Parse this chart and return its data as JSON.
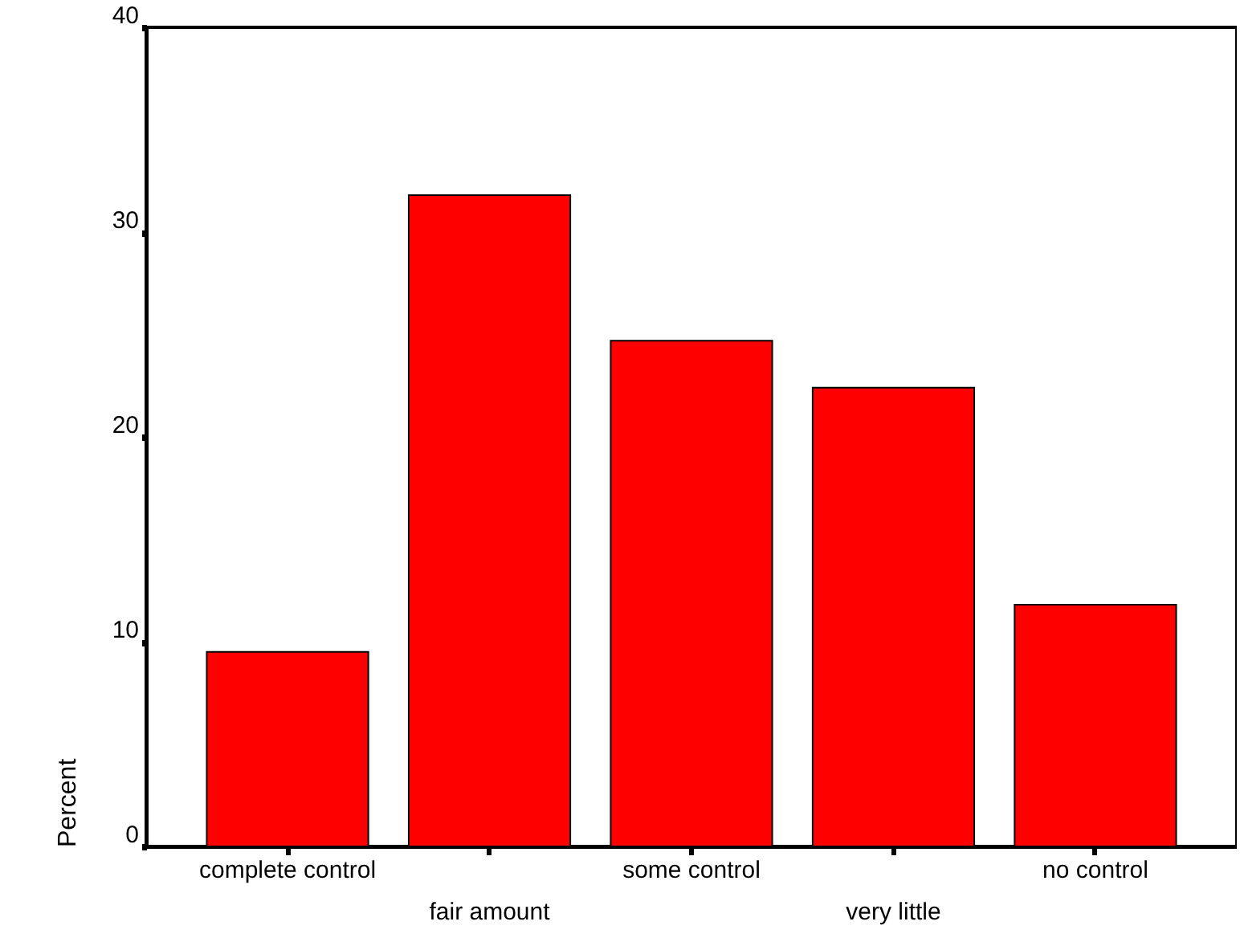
{
  "chart_data": {
    "type": "bar",
    "ylabel": "Percent",
    "categories": [
      "complete control",
      "fair amount",
      "some control",
      "very little",
      "no control"
    ],
    "values": [
      9.5,
      31.8,
      24.7,
      22.4,
      11.8
    ],
    "color": "#ff0000",
    "ylim": [
      0,
      40
    ],
    "yticks": [
      0,
      10,
      20,
      30,
      40
    ],
    "grid": false
  }
}
